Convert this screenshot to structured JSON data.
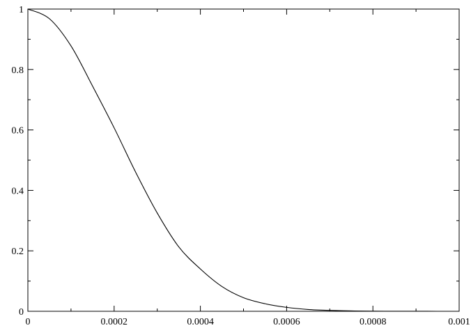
{
  "chart_data": {
    "type": "line",
    "title": "",
    "xlabel": "",
    "ylabel": "",
    "xlim": [
      0,
      0.001
    ],
    "ylim": [
      0,
      1
    ],
    "grid": false,
    "x_ticks": [
      {
        "value": 0,
        "label": "0"
      },
      {
        "value": 0.0002,
        "label": "0.0002"
      },
      {
        "value": 0.0004,
        "label": "0.0004"
      },
      {
        "value": 0.0006,
        "label": "0.0006"
      },
      {
        "value": 0.0008,
        "label": "0.0008"
      },
      {
        "value": 0.001,
        "label": "0.001"
      }
    ],
    "x_minor_ticks": [
      0.0001,
      0.0003,
      0.0005,
      0.0007,
      0.0009
    ],
    "y_ticks": [
      {
        "value": 0,
        "label": "0"
      },
      {
        "value": 0.2,
        "label": "0.2"
      },
      {
        "value": 0.4,
        "label": "0.4"
      },
      {
        "value": 0.6,
        "label": "0.6"
      },
      {
        "value": 0.8,
        "label": "0.8"
      },
      {
        "value": 1,
        "label": "1"
      }
    ],
    "y_minor_ticks": [
      0.1,
      0.3,
      0.5,
      0.7,
      0.9
    ],
    "series": [
      {
        "color": "#000000",
        "x": [
          0,
          5e-05,
          0.0001,
          0.00015,
          0.0002,
          0.00025,
          0.0003,
          0.00035,
          0.0004,
          0.00045,
          0.0005,
          0.00055,
          0.0006,
          0.00065,
          0.0007,
          0.00075,
          0.0008,
          0.00085,
          0.0009,
          0.00095,
          0.001
        ],
        "y": [
          1.0,
          0.968,
          0.878,
          0.745,
          0.607,
          0.46,
          0.325,
          0.213,
          0.14,
          0.082,
          0.045,
          0.025,
          0.013,
          0.006,
          0.003,
          0.0013,
          0.0005,
          0.0002,
          0.0001,
          3e-05,
          0.0
        ]
      }
    ]
  }
}
